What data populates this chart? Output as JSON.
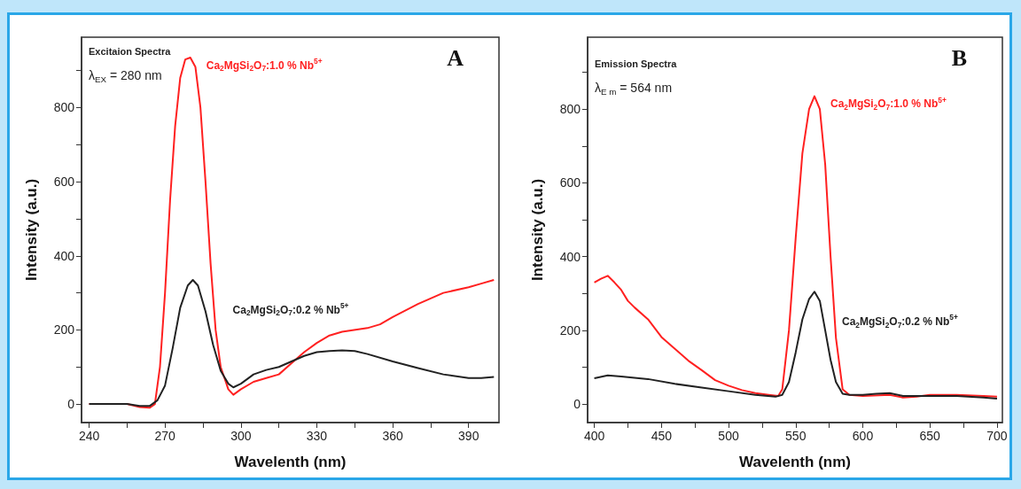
{
  "chart_data": [
    {
      "type": "line",
      "xlabel": "Wavelenth (nm)",
      "ylabel": "Intensity (a.u.)",
      "annotations": [
        "Excitaion Spectra",
        "λ$_{EX}$ = 280 nm",
        "A"
      ],
      "xlim": [
        237,
        402
      ],
      "xticks": [
        240,
        {
          "value": 255,
          "label": null
        },
        270,
        {
          "value": 285,
          "label": null
        },
        300,
        {
          "value": 315,
          "label": null
        },
        330,
        {
          "value": 345,
          "label": null
        },
        360,
        {
          "value": 375,
          "label": null
        },
        390
      ],
      "ylim": [
        -50,
        990
      ],
      "yticks": [
        0,
        {
          "value": 100,
          "label": null
        },
        200,
        {
          "value": 300,
          "label": null
        },
        400,
        {
          "value": 500,
          "label": null
        },
        600,
        {
          "value": 700,
          "label": null
        },
        800,
        {
          "value": 900,
          "label": null
        }
      ],
      "series": [
        {
          "name": "Ca$_{2}$MgSi$_{2}$O$_{7}$:1.0 % Nb$^{5+}$",
          "color": "#ff2020",
          "x": [
            240,
            255,
            260,
            264,
            266,
            268,
            270,
            272,
            274,
            276,
            278,
            280,
            282,
            284,
            286,
            288,
            290,
            292,
            295,
            297,
            300,
            305,
            310,
            315,
            320,
            325,
            330,
            335,
            340,
            350,
            355,
            360,
            370,
            380,
            390,
            395,
            400
          ],
          "values": [
            0,
            0,
            -8,
            -10,
            0,
            100,
            300,
            550,
            750,
            880,
            930,
            935,
            910,
            800,
            600,
            380,
            200,
            100,
            40,
            25,
            40,
            60,
            70,
            80,
            110,
            140,
            165,
            185,
            195,
            205,
            215,
            235,
            270,
            300,
            315,
            325,
            335
          ]
        },
        {
          "name": "Ca$_{2}$MgSi$_{2}$O$_{7}$:0.2 % Nb$^{5+}$",
          "color": "#222222",
          "x": [
            240,
            255,
            260,
            264,
            267,
            270,
            273,
            276,
            279,
            281,
            283,
            286,
            289,
            292,
            295,
            297,
            300,
            305,
            310,
            315,
            320,
            325,
            330,
            335,
            340,
            345,
            350,
            360,
            370,
            380,
            390,
            395,
            400
          ],
          "values": [
            0,
            0,
            -5,
            -5,
            10,
            50,
            150,
            260,
            320,
            335,
            320,
            250,
            160,
            90,
            55,
            45,
            55,
            80,
            92,
            100,
            115,
            130,
            140,
            143,
            145,
            143,
            135,
            115,
            97,
            80,
            70,
            70,
            73
          ]
        }
      ]
    },
    {
      "type": "line",
      "xlabel": "Wavelenth (nm)",
      "ylabel": "Intensity (a.u.)",
      "annotations": [
        "Emission Spectra",
        "λ$_{E m}$ = 564 nm",
        "B"
      ],
      "xlim": [
        395,
        704
      ],
      "xticks": [
        400,
        {
          "value": 425,
          "label": null
        },
        450,
        {
          "value": 475,
          "label": null
        },
        500,
        {
          "value": 525,
          "label": null
        },
        550,
        {
          "value": 575,
          "label": null
        },
        600,
        {
          "value": 625,
          "label": null
        },
        650,
        {
          "value": 675,
          "label": null
        },
        700
      ],
      "ylim": [
        -50,
        995
      ],
      "yticks": [
        0,
        {
          "value": 100,
          "label": null
        },
        200,
        {
          "value": 300,
          "label": null
        },
        400,
        {
          "value": 500,
          "label": null
        },
        600,
        {
          "value": 700,
          "label": null
        },
        800,
        {
          "value": 900,
          "label": null
        }
      ],
      "series": [
        {
          "name": "Ca$_{2}$MgSi$_{2}$O$_{7}$:1.0 % Nb$^{5+}$",
          "color": "#ff2020",
          "x": [
            400,
            405,
            410,
            415,
            420,
            425,
            430,
            440,
            450,
            460,
            470,
            480,
            490,
            500,
            510,
            520,
            530,
            537,
            540,
            545,
            550,
            555,
            560,
            564,
            568,
            572,
            576,
            580,
            585,
            590,
            600,
            620,
            630,
            640,
            650,
            670,
            690,
            700
          ],
          "values": [
            330,
            340,
            348,
            330,
            310,
            280,
            262,
            230,
            182,
            150,
            118,
            92,
            65,
            50,
            38,
            30,
            25,
            22,
            40,
            200,
            450,
            680,
            800,
            835,
            800,
            650,
            400,
            180,
            40,
            25,
            22,
            25,
            18,
            20,
            25,
            25,
            22,
            20
          ]
        },
        {
          "name": "Ca$_{2}$MgSi$_{2}$O$_{7}$:0.2 % Nb$^{5+}$",
          "color": "#222222",
          "x": [
            400,
            410,
            420,
            440,
            460,
            480,
            500,
            520,
            535,
            540,
            545,
            550,
            555,
            560,
            564,
            568,
            572,
            576,
            580,
            585,
            590,
            600,
            610,
            620,
            630,
            650,
            670,
            690,
            700
          ],
          "values": [
            70,
            78,
            75,
            68,
            55,
            45,
            35,
            25,
            20,
            25,
            60,
            140,
            230,
            285,
            305,
            280,
            200,
            120,
            60,
            28,
            25,
            25,
            28,
            30,
            22,
            22,
            22,
            18,
            15
          ]
        }
      ]
    }
  ]
}
